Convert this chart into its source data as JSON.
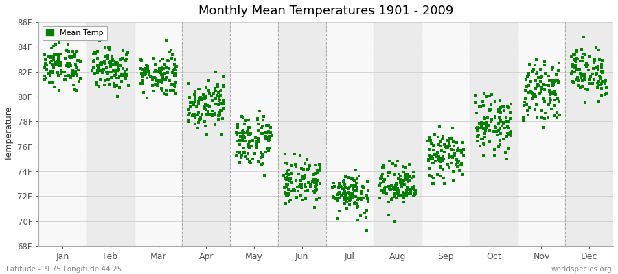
{
  "title": "Monthly Mean Temperatures 1901 - 2009",
  "ylabel": "Temperature",
  "subtitle_left": "Latitude -19.75 Longitude 44.25",
  "subtitle_right": "worldspecies.org",
  "legend_label": "Mean Temp",
  "months": [
    "Jan",
    "Feb",
    "Mar",
    "Apr",
    "May",
    "Jun",
    "Jul",
    "Aug",
    "Sep",
    "Oct",
    "Nov",
    "Dec"
  ],
  "ylim": [
    68,
    86
  ],
  "yticks": [
    68,
    70,
    72,
    74,
    76,
    78,
    80,
    82,
    84,
    86
  ],
  "ytick_labels": [
    "68F",
    "70F",
    "72F",
    "74F",
    "76F",
    "78F",
    "80F",
    "82F",
    "84F",
    "86F"
  ],
  "dot_color": "#008000",
  "dot_size": 6,
  "bg_color_light": "#ebebeb",
  "bg_color_dark": "#f8f8f8",
  "dashed_line_color": "#999999",
  "n_years": 109,
  "monthly_means": [
    82.5,
    82.3,
    81.8,
    79.5,
    76.5,
    73.2,
    72.3,
    72.8,
    75.2,
    77.8,
    80.5,
    82.0
  ],
  "monthly_stds": [
    0.85,
    0.85,
    0.85,
    1.0,
    1.1,
    0.9,
    0.9,
    0.9,
    1.0,
    1.1,
    1.1,
    1.0
  ],
  "monthly_mins": [
    80.5,
    80.0,
    79.5,
    77.0,
    73.5,
    69.5,
    69.0,
    69.5,
    73.0,
    75.0,
    77.5,
    79.5
  ],
  "monthly_maxs": [
    85.2,
    84.8,
    84.8,
    82.0,
    79.0,
    76.5,
    76.0,
    75.5,
    78.0,
    80.5,
    84.2,
    84.8
  ],
  "seed": 12345
}
